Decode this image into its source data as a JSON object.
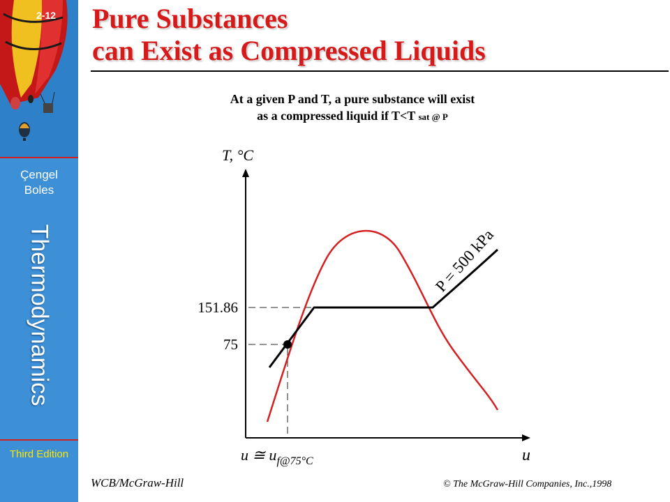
{
  "sidebar": {
    "slide_number": "2-12",
    "author_1": "Çengel",
    "author_2": "Boles",
    "book_title": "Thermodynamics",
    "edition": "Third Edition"
  },
  "slide": {
    "title_line_1": "Pure Substances",
    "title_line_2": "can Exist as Compressed Liquids",
    "subtitle_line_1": "At a given P and T, a pure substance will exist",
    "subtitle_line_2_main": "as a compressed liquid if T<T",
    "subtitle_line_2_sub": "sat @ P"
  },
  "diagram": {
    "y_axis_label": "T, °C",
    "x_axis_label": "u",
    "x_marker_label": "u ≅ u",
    "x_marker_subscript": "f@75°C",
    "tick_saturation_temp": "151.86",
    "tick_state_temp": "75",
    "isobar_label": "P = 500 kPa",
    "colors": {
      "dome": "#d42020",
      "isobar": "#000000",
      "dashed": "#555555"
    }
  },
  "footer": {
    "publisher": "WCB/McGraw-Hill",
    "copyright": "© The McGraw-Hill Companies, Inc.,1998"
  }
}
